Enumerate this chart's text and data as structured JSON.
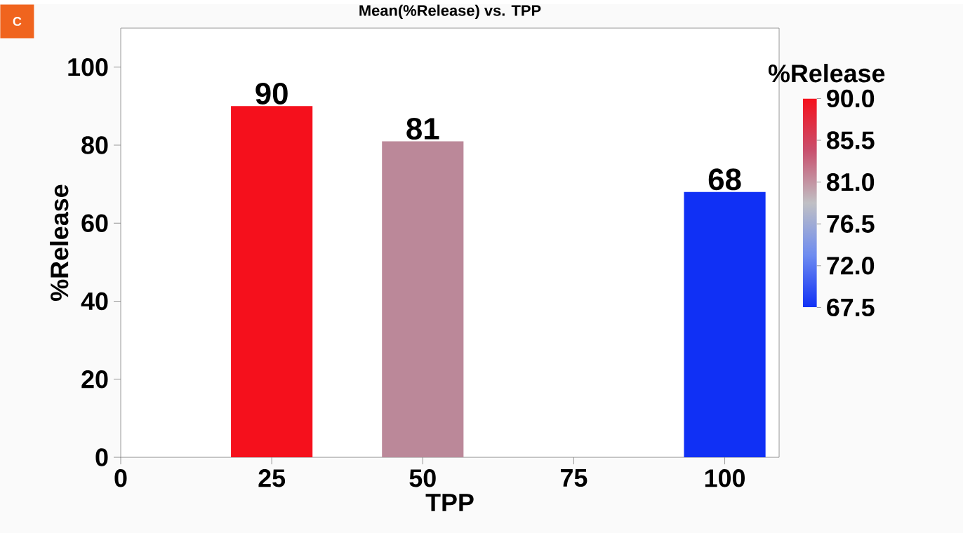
{
  "chart_data": {
    "type": "bar",
    "title": "Mean(%Release) vs. TPP",
    "xlabel": "TPP",
    "ylabel": "%Release",
    "clabel": "%Release",
    "x": [
      25,
      50,
      100
    ],
    "values": [
      90,
      81,
      68
    ],
    "colors": [
      "#f5101c",
      "#bb8899",
      "#1030f5"
    ],
    "data_labels": true,
    "xlim": [
      0,
      109
    ],
    "xticks": [
      0,
      25,
      50,
      75,
      100
    ],
    "ylim": [
      0,
      110
    ],
    "yticks": [
      0,
      20,
      40,
      60,
      80,
      100
    ],
    "clim": [
      67.5,
      90.0
    ],
    "cticks": [
      {
        "value": 67.5,
        "label": "67.5"
      },
      {
        "value": 72.0,
        "label": "72.0"
      },
      {
        "value": 76.5,
        "label": "76.5"
      },
      {
        "value": 81.0,
        "label": "81.0"
      },
      {
        "value": 85.5,
        "label": "85.5"
      },
      {
        "value": 90.0,
        "label": "90.0"
      }
    ],
    "annotations": [
      "C"
    ]
  }
}
